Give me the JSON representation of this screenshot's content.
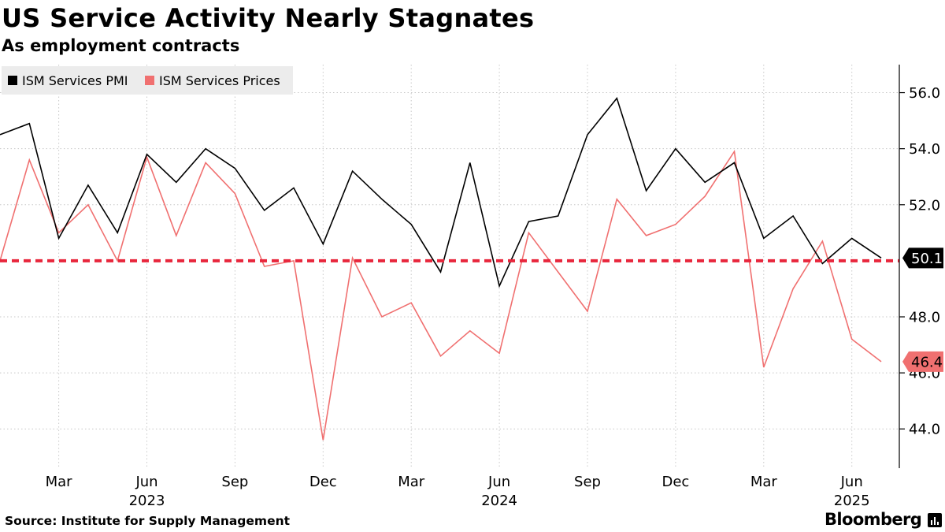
{
  "header": {
    "title": "US Service Activity Nearly Stagnates",
    "subtitle": "As employment contracts"
  },
  "footer": {
    "source": "Source: Institute for Supply Management",
    "brand": "Bloomberg"
  },
  "colors": {
    "pmi": "#000000",
    "prices": "#f07070",
    "reference": "#e8263c",
    "legend_bg": "#ececec",
    "grid": "#c8c8c8"
  },
  "chart_data": {
    "type": "line",
    "x": [
      "2023-01",
      "2023-02",
      "2023-03",
      "2023-04",
      "2023-05",
      "2023-06",
      "2023-07",
      "2023-08",
      "2023-09",
      "2023-10",
      "2023-11",
      "2023-12",
      "2024-01",
      "2024-02",
      "2024-03",
      "2024-04",
      "2024-05",
      "2024-06",
      "2024-07",
      "2024-08",
      "2024-09",
      "2024-10",
      "2024-11",
      "2024-12",
      "2025-01",
      "2025-02",
      "2025-03",
      "2025-04",
      "2025-05",
      "2025-06",
      "2025-07"
    ],
    "series": [
      {
        "name": "ISM Services PMI",
        "color": "#000000",
        "values": [
          54.5,
          54.9,
          50.8,
          52.7,
          51.0,
          53.8,
          52.8,
          54.0,
          53.3,
          51.8,
          52.6,
          50.6,
          53.2,
          52.2,
          51.3,
          49.6,
          53.5,
          49.1,
          51.4,
          51.6,
          54.5,
          55.8,
          52.5,
          54.0,
          52.8,
          53.5,
          50.8,
          51.6,
          49.9,
          50.8,
          50.1
        ]
      },
      {
        "name": "ISM Services Prices",
        "color": "#f07070",
        "values": [
          50.0,
          53.6,
          51.0,
          52.0,
          50.0,
          53.7,
          50.9,
          53.5,
          52.4,
          49.8,
          50.0,
          43.6,
          50.1,
          48.0,
          48.5,
          46.6,
          47.5,
          46.7,
          51.0,
          49.6,
          48.2,
          52.2,
          50.9,
          51.3,
          52.3,
          53.9,
          46.2,
          49.0,
          50.7,
          47.2,
          46.4
        ]
      }
    ],
    "x_tick_labels": [
      "Mar",
      "Jun",
      "Sep",
      "Dec",
      "Mar",
      "Jun",
      "Sep",
      "Dec",
      "Mar",
      "Jun"
    ],
    "x_tick_dates": [
      "2023-03",
      "2023-06",
      "2023-09",
      "2023-12",
      "2024-03",
      "2024-06",
      "2024-09",
      "2024-12",
      "2025-03",
      "2025-06"
    ],
    "year_labels": [
      "2023",
      "2024",
      "2025"
    ],
    "year_dates": [
      "2023-06",
      "2024-06",
      "2025-06"
    ],
    "y_ticks": [
      "44.0",
      "46.0",
      "48.0",
      "52.0",
      "54.0",
      "56.0"
    ],
    "y_tick_values": [
      44,
      46,
      48,
      52,
      54,
      56
    ],
    "ylim": [
      42.6,
      57
    ],
    "reference_line": {
      "value": 50,
      "style": "dashed"
    },
    "end_labels": [
      {
        "series": "ISM Services PMI",
        "text": "50.1",
        "value": 50.1
      },
      {
        "series": "ISM Services Prices",
        "text": "46.4",
        "value": 46.4
      }
    ],
    "legend_position": "top-left",
    "grid": "vertical dotted at x ticks, horizontal dotted at y ticks",
    "y_axis_side": "right"
  }
}
